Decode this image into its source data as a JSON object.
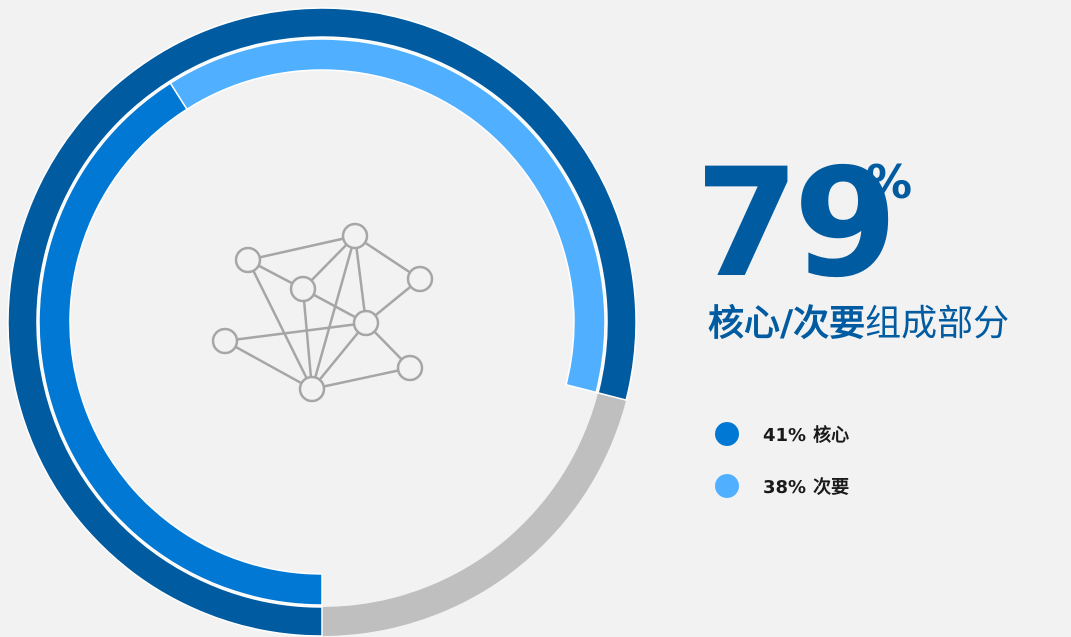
{
  "chart_data": {
    "type": "donut",
    "total": 79,
    "total_unit": "%",
    "total_color": "#005ba1",
    "rest_color": "#bfbfbf",
    "title": {
      "emphasis": "核心/次要",
      "rest": "组成部分"
    },
    "series": [
      {
        "name": "核心",
        "color": "#0078d4",
        "value": 41,
        "value_label": "41%"
      },
      {
        "name": "次要",
        "color": "#50b0ff",
        "value": 38,
        "value_label": "38%"
      }
    ]
  }
}
